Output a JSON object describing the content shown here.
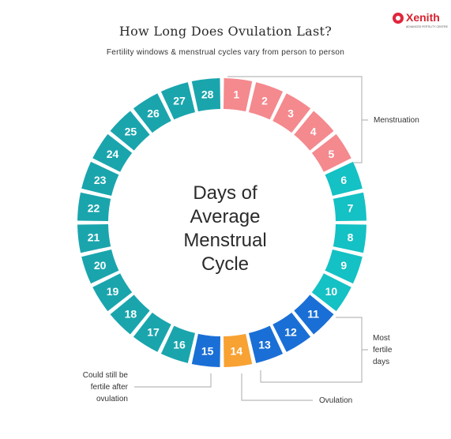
{
  "header": {
    "title": "How Long Does Ovulation Last?",
    "subtitle": "Fertility windows & menstrual cycles vary from person to person"
  },
  "logo": {
    "name": "Xenith",
    "tagline": "ADVANCED FERTILITY CENTRE"
  },
  "center": {
    "lines": [
      "Days of",
      "Average",
      "Menstrual",
      "Cycle"
    ]
  },
  "days": [
    {
      "day": "1",
      "phase": "menstruation"
    },
    {
      "day": "2",
      "phase": "menstruation"
    },
    {
      "day": "3",
      "phase": "menstruation"
    },
    {
      "day": "4",
      "phase": "menstruation"
    },
    {
      "day": "5",
      "phase": "menstruation"
    },
    {
      "day": "6",
      "phase": "teal-light"
    },
    {
      "day": "7",
      "phase": "teal-light"
    },
    {
      "day": "8",
      "phase": "teal-light"
    },
    {
      "day": "9",
      "phase": "teal-light"
    },
    {
      "day": "10",
      "phase": "teal-light"
    },
    {
      "day": "11",
      "phase": "most-fertile"
    },
    {
      "day": "12",
      "phase": "most-fertile"
    },
    {
      "day": "13",
      "phase": "most-fertile"
    },
    {
      "day": "14",
      "phase": "ovulation"
    },
    {
      "day": "15",
      "phase": "most-fertile"
    },
    {
      "day": "16",
      "phase": "teal"
    },
    {
      "day": "17",
      "phase": "teal"
    },
    {
      "day": "18",
      "phase": "teal"
    },
    {
      "day": "19",
      "phase": "teal"
    },
    {
      "day": "20",
      "phase": "teal"
    },
    {
      "day": "21",
      "phase": "teal"
    },
    {
      "day": "22",
      "phase": "teal"
    },
    {
      "day": "23",
      "phase": "teal"
    },
    {
      "day": "24",
      "phase": "teal"
    },
    {
      "day": "25",
      "phase": "teal"
    },
    {
      "day": "26",
      "phase": "teal"
    },
    {
      "day": "27",
      "phase": "teal"
    },
    {
      "day": "28",
      "phase": "teal"
    }
  ],
  "colors": {
    "menstruation": "#f4898e",
    "teal-light": "#14c1c4",
    "teal": "#1aa5ad",
    "most-fertile": "#1a6fd6",
    "ovulation": "#f7a233",
    "bracket": "#b9b9b9"
  },
  "annotations": {
    "menstruation": [
      "Menstruation"
    ],
    "most_fertile": [
      "Most",
      "fertile",
      "days"
    ],
    "could_still": [
      "Could still be",
      "fertile after",
      "ovulation"
    ],
    "ovulation": [
      "Ovulation"
    ]
  }
}
